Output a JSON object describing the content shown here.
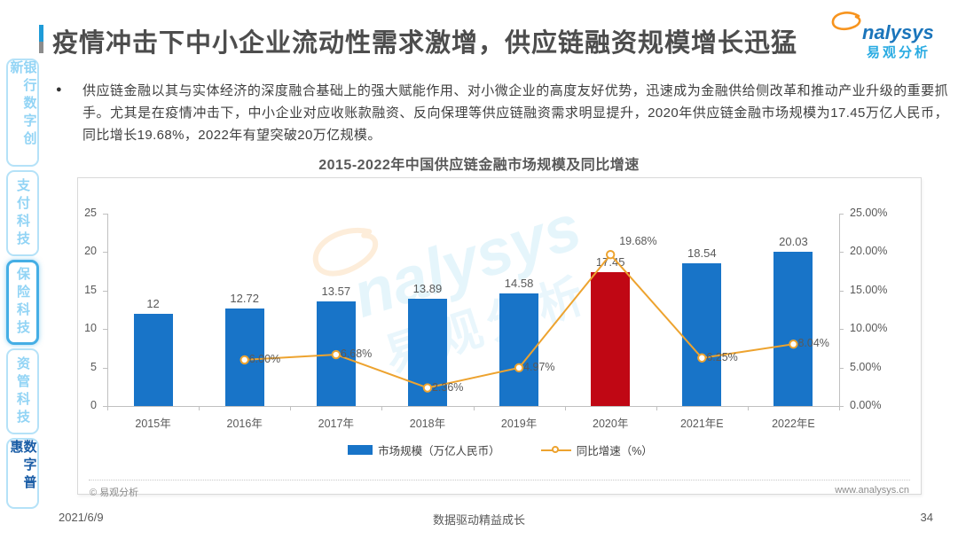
{
  "page": {
    "title": "疫情冲击下中小企业流动性需求激增，供应链融资规模增长迅猛",
    "date": "2021/6/9",
    "slogan": "数据驱动精益成长",
    "page_number": "34"
  },
  "logo": {
    "wordmark": "nalysys",
    "cn": "易观分析"
  },
  "watermark": {
    "wordmark": "nalysys",
    "cn": "易观分析"
  },
  "sidebar": {
    "items": [
      {
        "label": "银行数字创新",
        "state": "normal"
      },
      {
        "label": "支付科技",
        "state": "normal"
      },
      {
        "label": "保险科技",
        "state": "emphasized"
      },
      {
        "label": "资管科技",
        "state": "normal"
      },
      {
        "label": "数字普惠",
        "state": "active"
      }
    ]
  },
  "bullet": {
    "marker": "●",
    "text": "供应链金融以其与实体经济的深度融合基础上的强大赋能作用、对小微企业的高度友好优势，迅速成为金融供给侧改革和推动产业升级的重要抓手。尤其是在疫情冲击下，中小企业对应收账款融资、反向保理等供应链融资需求明显提升，2020年供应链金融市场规模为17.45万亿人民币，同比增长19.68%，2022年有望突破20万亿规模。"
  },
  "chart_card": {
    "source": "© 易观分析",
    "website": "www.analysys.cn"
  },
  "chart_data": {
    "type": "bar+line",
    "title": "2015-2022年中国供应链金融市场规模及同比增速",
    "categories": [
      "2015年",
      "2016年",
      "2017年",
      "2018年",
      "2019年",
      "2020年",
      "2021年E",
      "2022年E"
    ],
    "series": [
      {
        "name": "市场规模（万亿人民币）",
        "type": "bar",
        "values": [
          12,
          12.72,
          13.57,
          13.89,
          14.58,
          17.45,
          18.54,
          20.03
        ],
        "labels": [
          "12",
          "12.72",
          "13.57",
          "13.89",
          "14.58",
          "17.45",
          "18.54",
          "20.03"
        ]
      },
      {
        "name": "同比增速（%）",
        "type": "line",
        "values": [
          null,
          6.0,
          6.68,
          2.36,
          4.97,
          19.68,
          6.25,
          8.04
        ],
        "labels": [
          null,
          "6.00%",
          "6.68%",
          "2.36%",
          "4.97%",
          "19.68%",
          "6.25%",
          "8.04%"
        ]
      }
    ],
    "highlight_index": 5,
    "left_axis": {
      "min": 0,
      "max": 25,
      "ticks": [
        "0",
        "5",
        "10",
        "15",
        "20",
        "25"
      ]
    },
    "right_axis": {
      "min": 0,
      "max": 25,
      "ticks": [
        "0.00%",
        "5.00%",
        "10.00%",
        "15.00%",
        "20.00%",
        "25.00%"
      ]
    },
    "colors": {
      "bar": "#1874C8",
      "bar_highlight": "#C00714",
      "line": "#EDA32F"
    },
    "legend_position": "bottom",
    "grid": false
  }
}
